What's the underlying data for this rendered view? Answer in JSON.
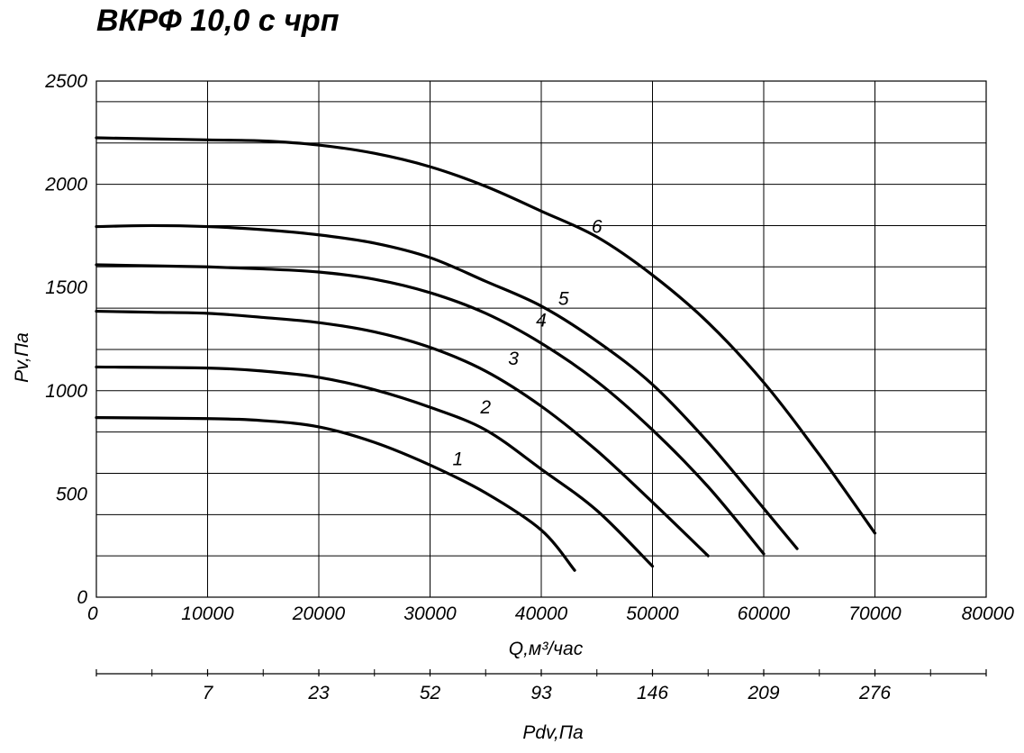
{
  "title": "ВКРФ 10,0 с чрп",
  "chart_data": {
    "type": "line",
    "title": "ВКРФ 10,0 с чрп",
    "xlabel": "Q,м³/час",
    "ylabel": "Pv,Па",
    "xlim": [
      0,
      80000
    ],
    "ylim": [
      0,
      2500
    ],
    "x_ticks": [
      0,
      10000,
      20000,
      30000,
      40000,
      50000,
      60000,
      70000,
      80000
    ],
    "x_tick_labels": [
      "0",
      "10000",
      "20000",
      "30000",
      "40000",
      "50000",
      "60000",
      "70000",
      "80000"
    ],
    "y_ticks": [
      0,
      500,
      1000,
      1500,
      2000,
      2500
    ],
    "y_tick_labels": [
      "0",
      "500",
      "1000",
      "1500",
      "2000",
      "2500"
    ],
    "grid": true,
    "secondary_axis": {
      "label": "Pdv,Па",
      "ticks": [
        {
          "q": 10000,
          "label": "7"
        },
        {
          "q": 20000,
          "label": "23"
        },
        {
          "q": 30000,
          "label": "52"
        },
        {
          "q": 40000,
          "label": "93"
        },
        {
          "q": 50000,
          "label": "146"
        },
        {
          "q": 60000,
          "label": "209"
        },
        {
          "q": 70000,
          "label": "276"
        }
      ],
      "minor_ticks": [
        5000,
        15000,
        25000,
        35000,
        45000,
        55000,
        65000,
        75000
      ]
    },
    "series": [
      {
        "name": "1",
        "label_at": [
          32500,
          640
        ],
        "points": [
          [
            0,
            870
          ],
          [
            10000,
            865
          ],
          [
            15000,
            855
          ],
          [
            20000,
            825
          ],
          [
            25000,
            750
          ],
          [
            30000,
            640
          ],
          [
            35000,
            505
          ],
          [
            40000,
            325
          ],
          [
            43000,
            130
          ]
        ]
      },
      {
        "name": "2",
        "label_at": [
          35000,
          890
        ],
        "points": [
          [
            0,
            1115
          ],
          [
            10000,
            1110
          ],
          [
            15000,
            1095
          ],
          [
            20000,
            1065
          ],
          [
            25000,
            1005
          ],
          [
            30000,
            920
          ],
          [
            35000,
            810
          ],
          [
            40000,
            620
          ],
          [
            45000,
            420
          ],
          [
            50000,
            150
          ]
        ]
      },
      {
        "name": "3",
        "label_at": [
          37500,
          1125
        ],
        "points": [
          [
            0,
            1385
          ],
          [
            5000,
            1380
          ],
          [
            10000,
            1375
          ],
          [
            15000,
            1355
          ],
          [
            20000,
            1330
          ],
          [
            25000,
            1285
          ],
          [
            30000,
            1210
          ],
          [
            35000,
            1095
          ],
          [
            40000,
            925
          ],
          [
            45000,
            710
          ],
          [
            50000,
            460
          ],
          [
            55000,
            200
          ]
        ]
      },
      {
        "name": "4",
        "label_at": [
          40000,
          1310
        ],
        "points": [
          [
            0,
            1610
          ],
          [
            5000,
            1605
          ],
          [
            10000,
            1600
          ],
          [
            15000,
            1590
          ],
          [
            20000,
            1575
          ],
          [
            25000,
            1540
          ],
          [
            30000,
            1475
          ],
          [
            35000,
            1375
          ],
          [
            40000,
            1230
          ],
          [
            45000,
            1045
          ],
          [
            50000,
            810
          ],
          [
            55000,
            535
          ],
          [
            60000,
            210
          ]
        ]
      },
      {
        "name": "5",
        "label_at": [
          42000,
          1415
        ],
        "points": [
          [
            0,
            1795
          ],
          [
            5000,
            1800
          ],
          [
            10000,
            1795
          ],
          [
            15000,
            1780
          ],
          [
            20000,
            1755
          ],
          [
            25000,
            1715
          ],
          [
            30000,
            1645
          ],
          [
            35000,
            1530
          ],
          [
            40000,
            1410
          ],
          [
            45000,
            1240
          ],
          [
            50000,
            1030
          ],
          [
            55000,
            750
          ],
          [
            60000,
            430
          ],
          [
            63000,
            235
          ]
        ]
      },
      {
        "name": "6",
        "label_at": [
          45000,
          1765
        ],
        "points": [
          [
            0,
            2225
          ],
          [
            10000,
            2215
          ],
          [
            15000,
            2210
          ],
          [
            20000,
            2190
          ],
          [
            25000,
            2150
          ],
          [
            30000,
            2085
          ],
          [
            35000,
            1990
          ],
          [
            40000,
            1870
          ],
          [
            45000,
            1745
          ],
          [
            50000,
            1560
          ],
          [
            55000,
            1330
          ],
          [
            60000,
            1040
          ],
          [
            65000,
            690
          ],
          [
            70000,
            310
          ]
        ]
      }
    ]
  }
}
